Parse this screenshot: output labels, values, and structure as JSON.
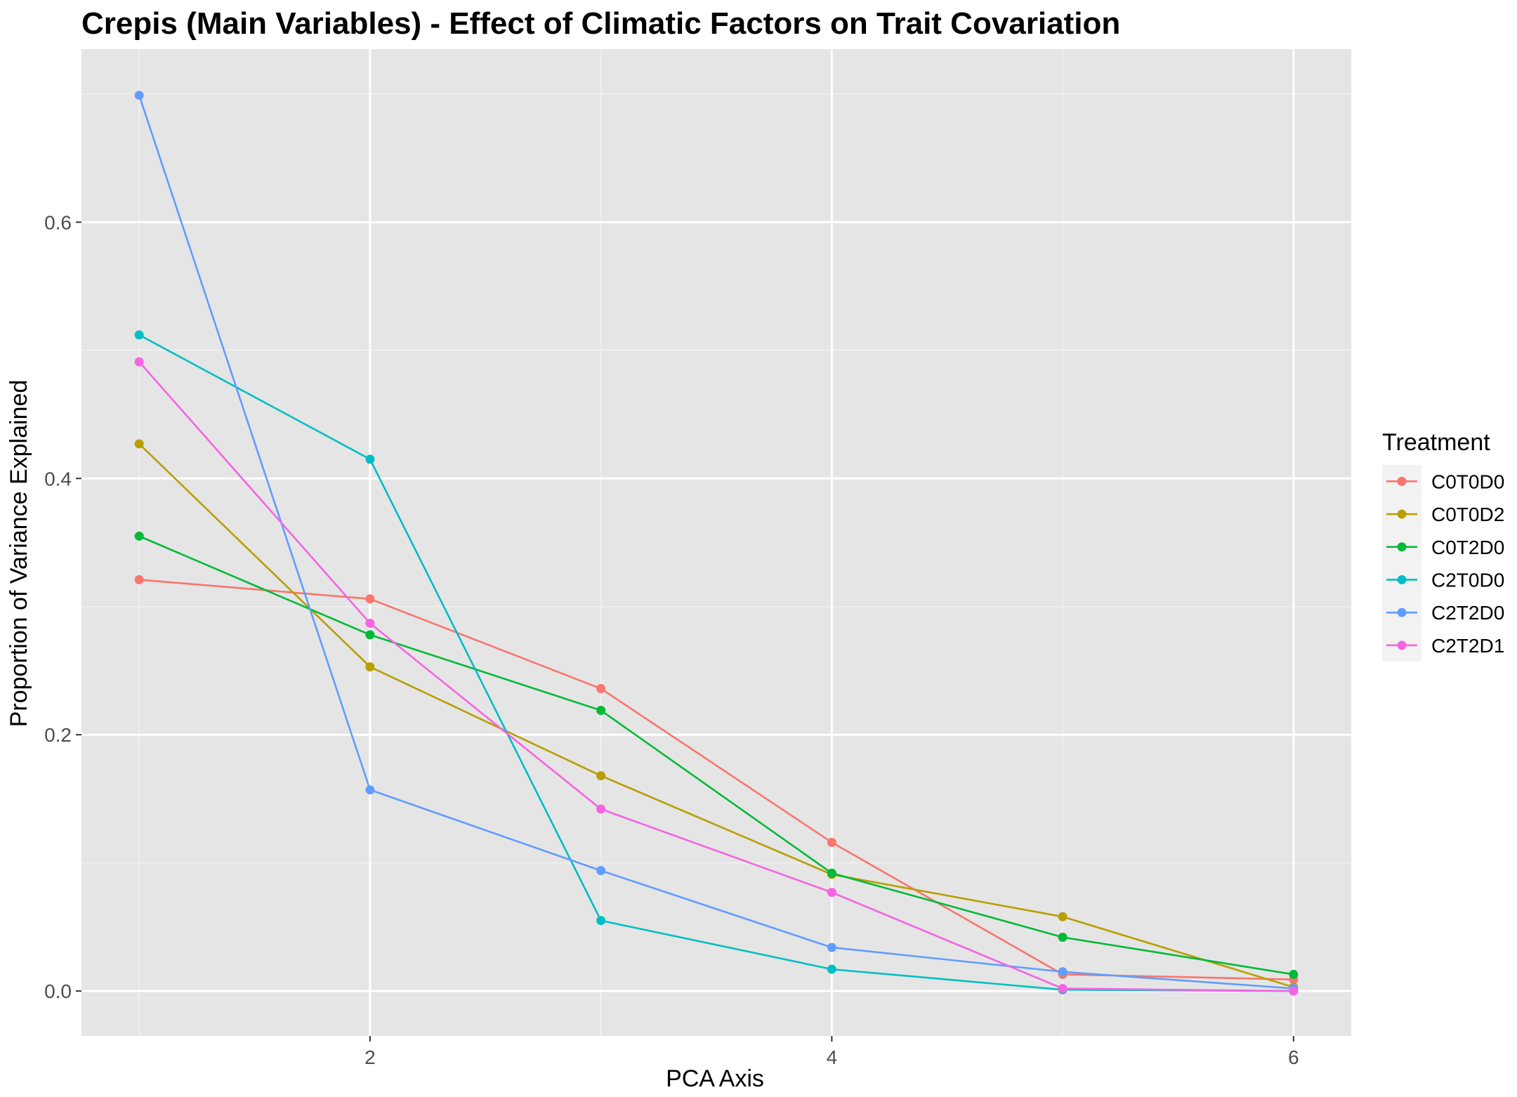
{
  "chart_data": {
    "type": "line",
    "title": "Crepis (Main Variables) - Effect of Climatic Factors on Trait Covariation",
    "xlabel": "PCA Axis",
    "ylabel": "Proportion of Variance Explained",
    "x": [
      1,
      2,
      3,
      4,
      5,
      6
    ],
    "xlim": [
      0.75,
      6.25
    ],
    "ylim": [
      -0.035,
      0.735
    ],
    "x_ticks": [
      2,
      4,
      6
    ],
    "y_ticks": [
      0.0,
      0.2,
      0.4,
      0.6
    ],
    "x_tick_labels": [
      "2",
      "4",
      "6"
    ],
    "y_tick_labels": [
      "0.0",
      "0.2",
      "0.4",
      "0.6"
    ],
    "grid": true,
    "legend_position": "right",
    "legend_title": "Treatment",
    "series": [
      {
        "name": "C0T0D0",
        "color": "#F8766D",
        "values": [
          0.321,
          0.306,
          0.236,
          0.116,
          0.013,
          0.009
        ]
      },
      {
        "name": "C0T0D2",
        "color": "#B79F00",
        "values": [
          0.427,
          0.253,
          0.168,
          0.091,
          0.058,
          0.003
        ]
      },
      {
        "name": "C0T2D0",
        "color": "#00BA38",
        "values": [
          0.355,
          0.278,
          0.219,
          0.092,
          0.042,
          0.013
        ]
      },
      {
        "name": "C2T0D0",
        "color": "#00BFC4",
        "values": [
          0.512,
          0.415,
          0.055,
          0.017,
          0.001,
          0.0
        ]
      },
      {
        "name": "C2T2D0",
        "color": "#619CFF",
        "values": [
          0.699,
          0.157,
          0.094,
          0.034,
          0.015,
          0.002
        ]
      },
      {
        "name": "C2T2D1",
        "color": "#F564E3",
        "values": [
          0.491,
          0.287,
          0.142,
          0.077,
          0.002,
          0.0
        ]
      }
    ]
  }
}
